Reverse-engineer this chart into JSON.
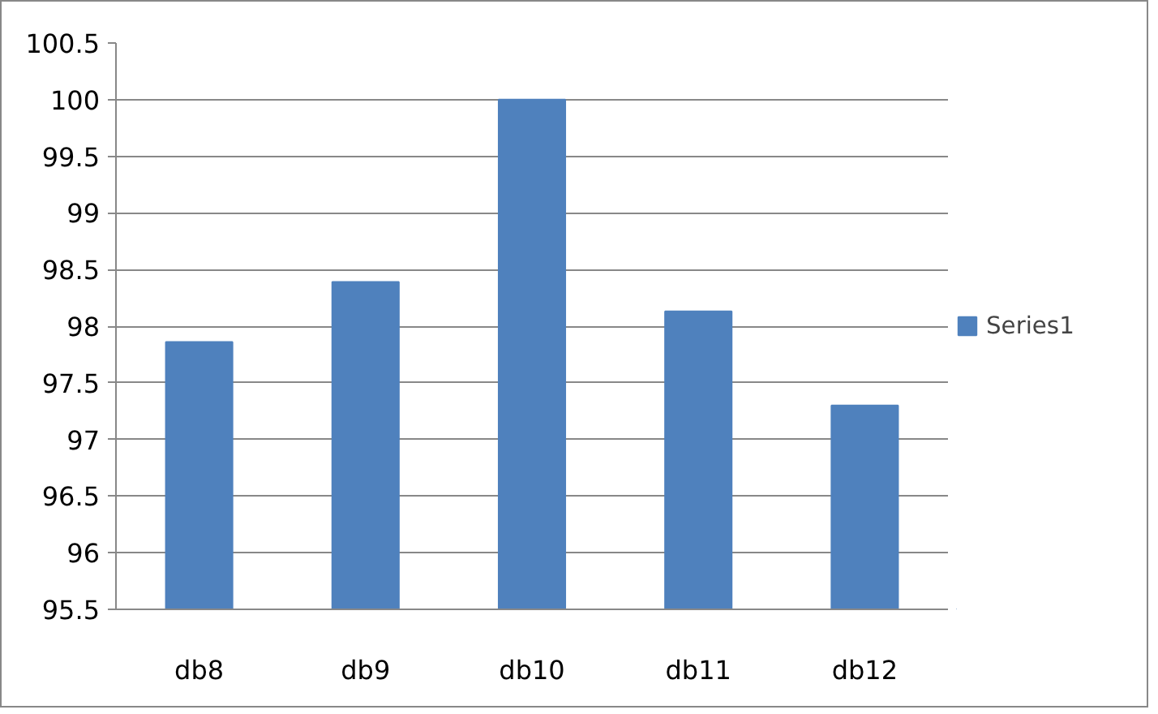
{
  "chart_data": {
    "type": "bar",
    "categories": [
      "db8",
      "db9",
      "db10",
      "db11",
      "db12"
    ],
    "series": [
      {
        "name": "Series1",
        "color": "#4f81bd",
        "values": [
          97.86,
          98.39,
          100,
          98.13,
          97.3
        ]
      }
    ],
    "ylim": [
      95.5,
      100.5
    ],
    "yticks": [
      95.5,
      96,
      96.5,
      97,
      97.5,
      98,
      98.5,
      99,
      99.5,
      100,
      100.5
    ],
    "grid": "y",
    "legend": "right"
  }
}
